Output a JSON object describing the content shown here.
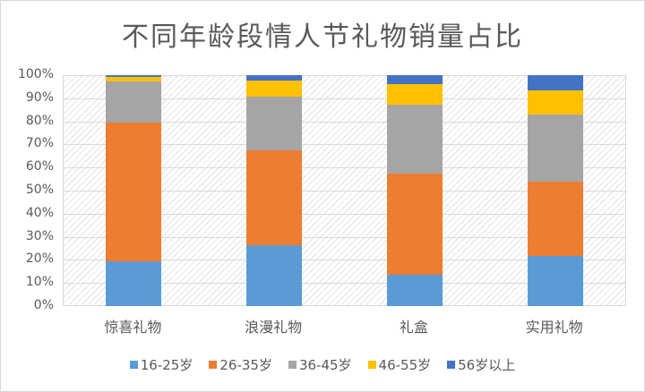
{
  "chart_data": {
    "type": "bar",
    "stacked": true,
    "percent": true,
    "title": "不同年龄段情人节礼物销量占比",
    "xlabel": "",
    "ylabel": "",
    "ylim": [
      0,
      100
    ],
    "yticks": [
      "0%",
      "10%",
      "20%",
      "30%",
      "40%",
      "50%",
      "60%",
      "70%",
      "80%",
      "90%",
      "100%"
    ],
    "grid": true,
    "legend_position": "bottom",
    "categories": [
      "惊喜礼物",
      "浪漫礼物",
      "礼盒",
      "实用礼物"
    ],
    "series": [
      {
        "name": "16-25岁",
        "color": "#5b9bd5",
        "values": [
          19.5,
          26.4,
          13.6,
          21.7
        ]
      },
      {
        "name": "26-35岁",
        "color": "#ed7d31",
        "values": [
          60.0,
          41.0,
          43.8,
          32.2
        ]
      },
      {
        "name": "36-45岁",
        "color": "#a5a5a5",
        "values": [
          17.8,
          23.3,
          29.8,
          29.0
        ]
      },
      {
        "name": "46-55岁",
        "color": "#ffc000",
        "values": [
          1.9,
          7.0,
          8.9,
          10.5
        ]
      },
      {
        "name": "56岁以上",
        "color": "#4472c4",
        "values": [
          0.8,
          2.3,
          3.9,
          6.6
        ]
      }
    ]
  }
}
